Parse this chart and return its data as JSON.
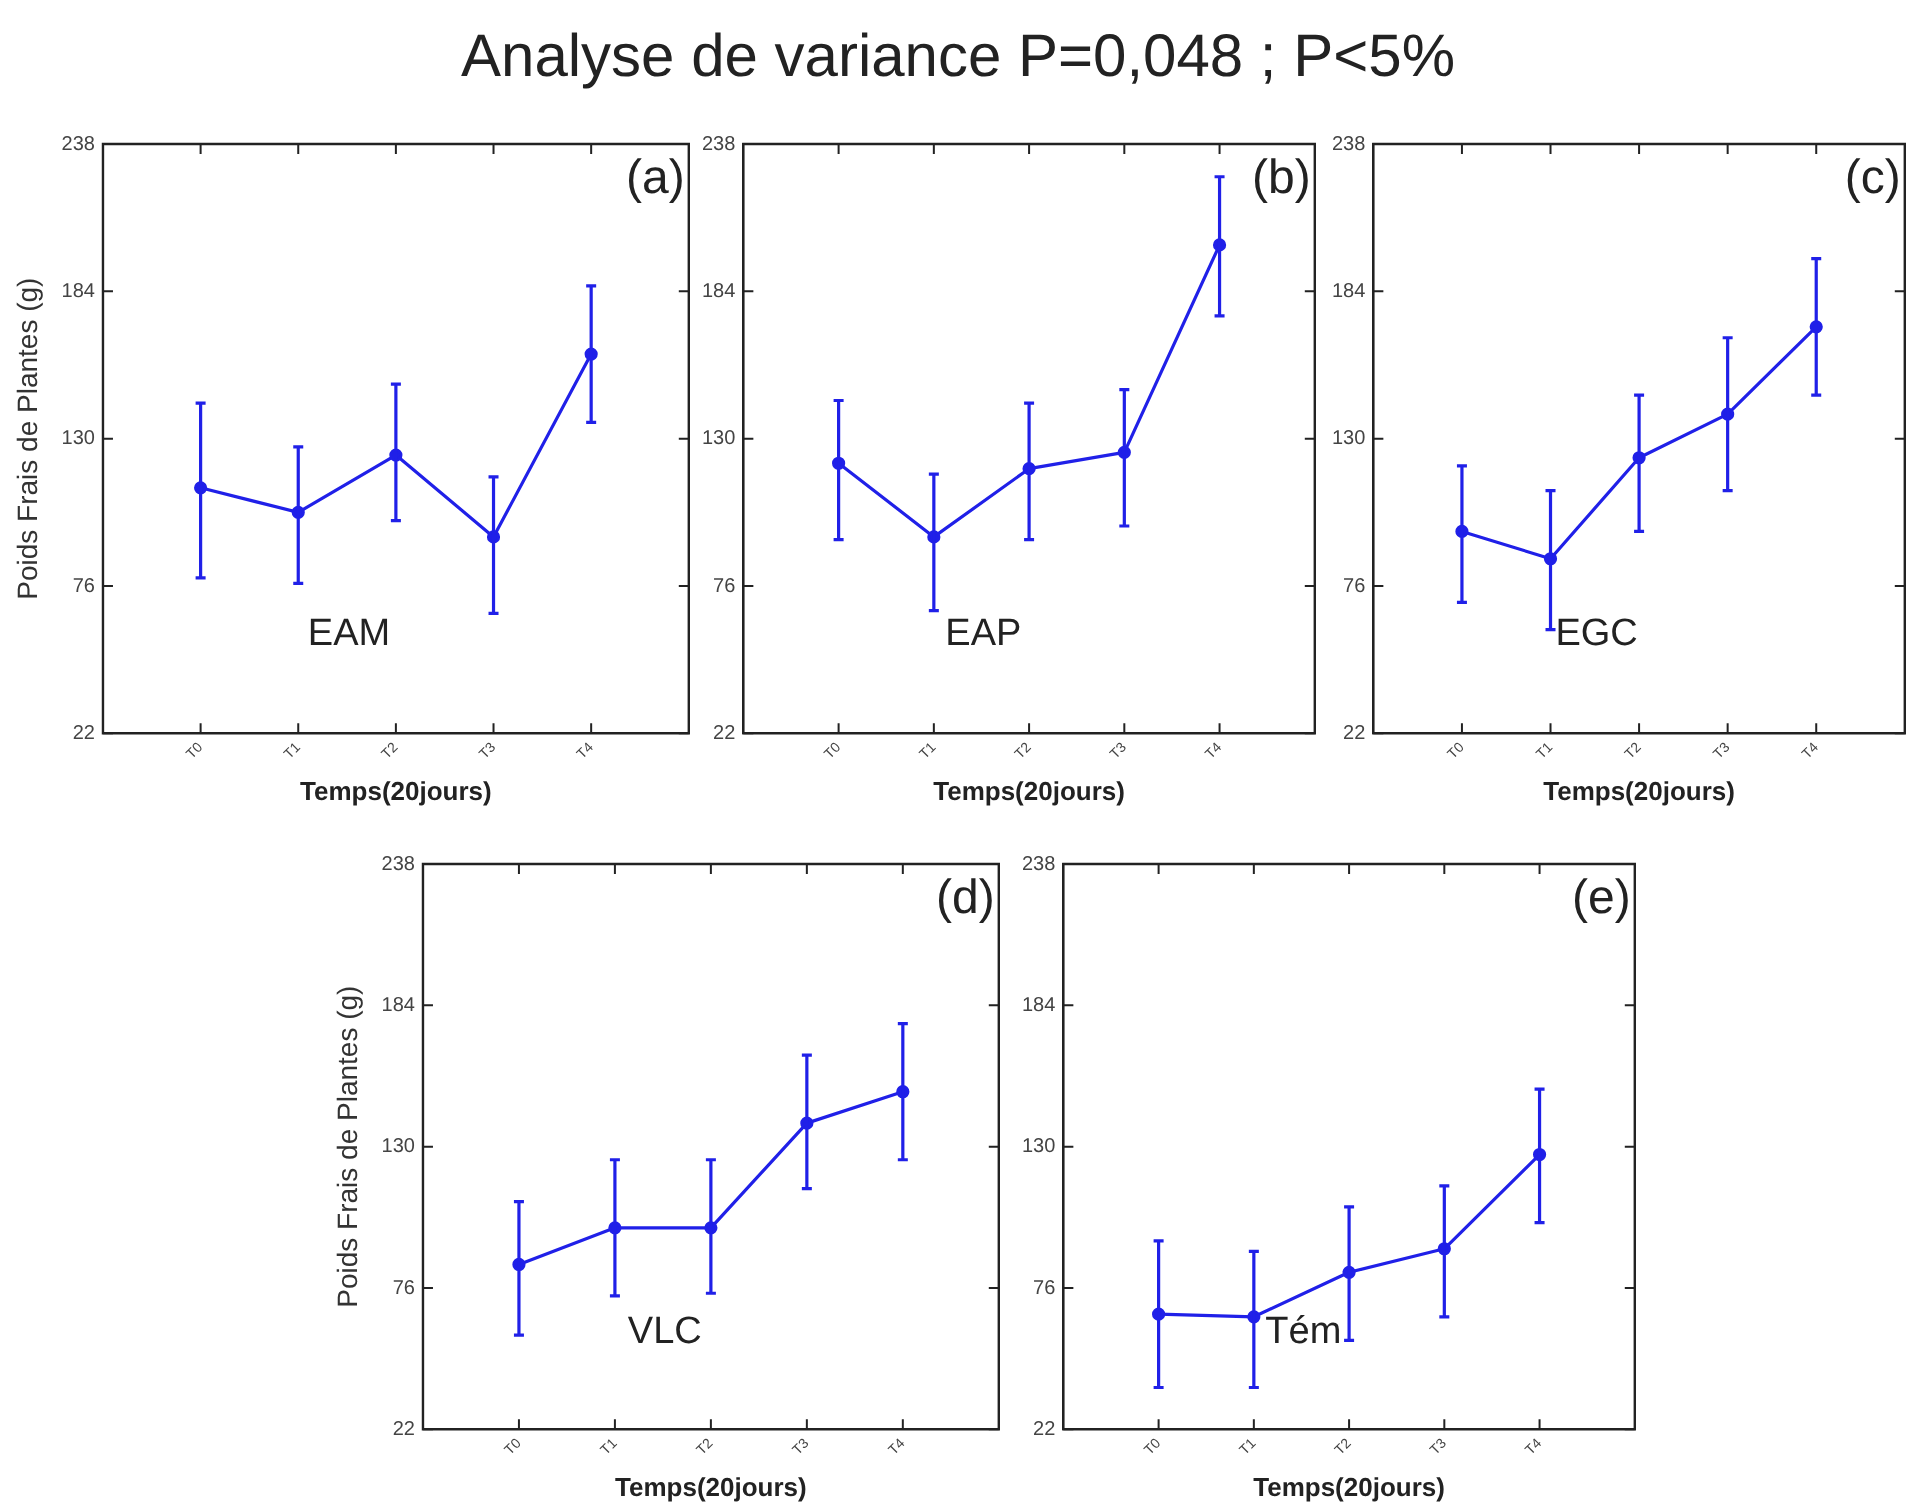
{
  "chart_data": [
    {
      "type": "line",
      "title": "Analyse de variance P=0,048 ; P<5%",
      "xlabel": "Temps(20jours)",
      "ylabel": "Poids Frais de Plantes (g)",
      "annotations": [
        "(a)",
        "EAM"
      ],
      "categories": [
        "T0",
        "T1",
        "T2",
        "T3",
        "T4"
      ],
      "ylim": [
        22,
        238
      ],
      "yticks": [
        22,
        76,
        130,
        184,
        238
      ],
      "marker": "circle",
      "grid": false,
      "legend": false,
      "series": [
        {
          "color": "#2020e8",
          "values": [
            112,
            103,
            124,
            94,
            161
          ],
          "errors": [
            [
              79,
              143
            ],
            [
              77,
              127
            ],
            [
              100,
              150
            ],
            [
              66,
              116
            ],
            [
              136,
              186
            ]
          ]
        }
      ]
    },
    {
      "type": "line",
      "xlabel": "Temps(20jours)",
      "annotations": [
        "(b)",
        "EAP"
      ],
      "categories": [
        "T0",
        "T1",
        "T2",
        "T3",
        "T4"
      ],
      "ylim": [
        22,
        238
      ],
      "yticks": [
        22,
        76,
        130,
        184,
        238
      ],
      "marker": "circle",
      "grid": false,
      "legend": false,
      "series": [
        {
          "color": "#2020e8",
          "values": [
            121,
            94,
            119,
            125,
            201
          ],
          "errors": [
            [
              93,
              144
            ],
            [
              67,
              117
            ],
            [
              93,
              143
            ],
            [
              98,
              148
            ],
            [
              175,
              226
            ]
          ]
        }
      ]
    },
    {
      "type": "line",
      "xlabel": "Temps(20jours)",
      "annotations": [
        "(c)",
        "EGC"
      ],
      "categories": [
        "T0",
        "T1",
        "T2",
        "T3",
        "T4"
      ],
      "ylim": [
        22,
        238
      ],
      "yticks": [
        22,
        76,
        130,
        184,
        238
      ],
      "marker": "circle",
      "grid": false,
      "legend": false,
      "series": [
        {
          "color": "#2020e8",
          "values": [
            96,
            86,
            123,
            139,
            171
          ],
          "errors": [
            [
              70,
              120
            ],
            [
              60,
              111
            ],
            [
              96,
              146
            ],
            [
              111,
              167
            ],
            [
              146,
              196
            ]
          ]
        }
      ]
    },
    {
      "type": "line",
      "xlabel": "Temps(20jours)",
      "ylabel": "Poids Frais de Plantes (g)",
      "annotations": [
        "(d)",
        "VLC"
      ],
      "categories": [
        "T0",
        "T1",
        "T2",
        "T3",
        "T4"
      ],
      "ylim": [
        22,
        238
      ],
      "yticks": [
        22,
        76,
        130,
        184,
        238
      ],
      "marker": "circle",
      "grid": false,
      "legend": false,
      "series": [
        {
          "color": "#2020e8",
          "values": [
            85,
            99,
            99,
            139,
            151
          ],
          "errors": [
            [
              58,
              109
            ],
            [
              73,
              125
            ],
            [
              74,
              125
            ],
            [
              114,
              165
            ],
            [
              125,
              177
            ]
          ]
        }
      ]
    },
    {
      "type": "line",
      "xlabel": "Temps(20jours)",
      "annotations": [
        "(e)",
        "Tém"
      ],
      "categories": [
        "T0",
        "T1",
        "T2",
        "T3",
        "T4"
      ],
      "ylim": [
        22,
        238
      ],
      "yticks": [
        22,
        76,
        130,
        184,
        238
      ],
      "marker": "circle",
      "grid": false,
      "legend": false,
      "series": [
        {
          "color": "#2020e8",
          "values": [
            66,
            65,
            82,
            91,
            127
          ],
          "errors": [
            [
              38,
              94
            ],
            [
              38,
              90
            ],
            [
              56,
              107
            ],
            [
              65,
              115
            ],
            [
              101,
              152
            ]
          ]
        }
      ]
    }
  ]
}
